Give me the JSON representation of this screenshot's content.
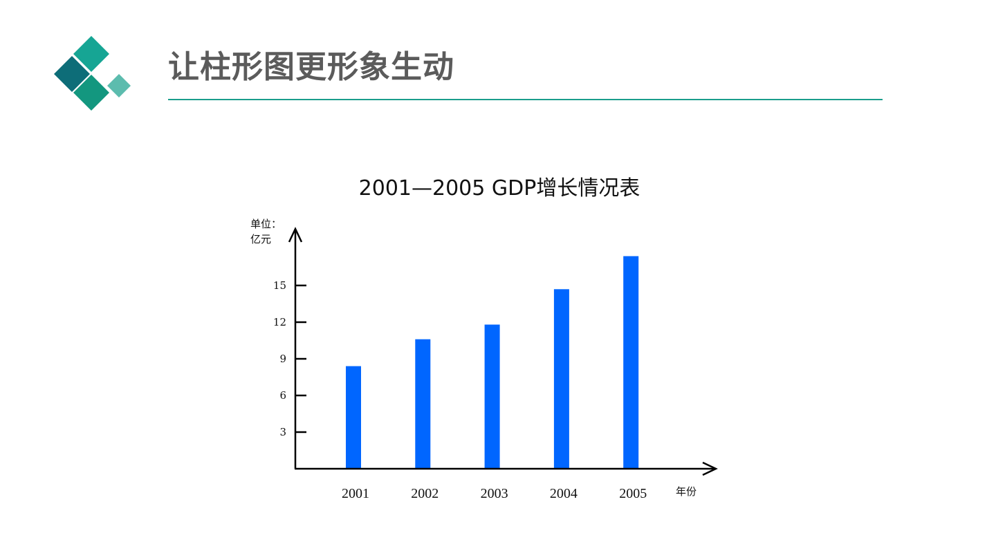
{
  "page": {
    "title": "让柱形图更形象生动",
    "accent_color": "#1a9e8c"
  },
  "logo": {
    "icon": "diamond-blocks-logo",
    "colors": [
      "#16a594",
      "#0d6d78",
      "#13977f",
      "#5cbcae"
    ]
  },
  "chart_data": {
    "type": "bar",
    "title": "2001—2005 GDP增长情况表",
    "categories": [
      "2001",
      "2002",
      "2003",
      "2004",
      "2005"
    ],
    "values": [
      8.4,
      10.6,
      11.8,
      14.7,
      17.4
    ],
    "y_ticks": [
      3,
      6,
      9,
      12,
      15
    ],
    "ylim": [
      0,
      19
    ],
    "ylabel_lines": [
      "单位：",
      "亿元"
    ],
    "xlabel": "年份",
    "bar_color": "#0066ff",
    "grid": false,
    "legend": "none"
  }
}
